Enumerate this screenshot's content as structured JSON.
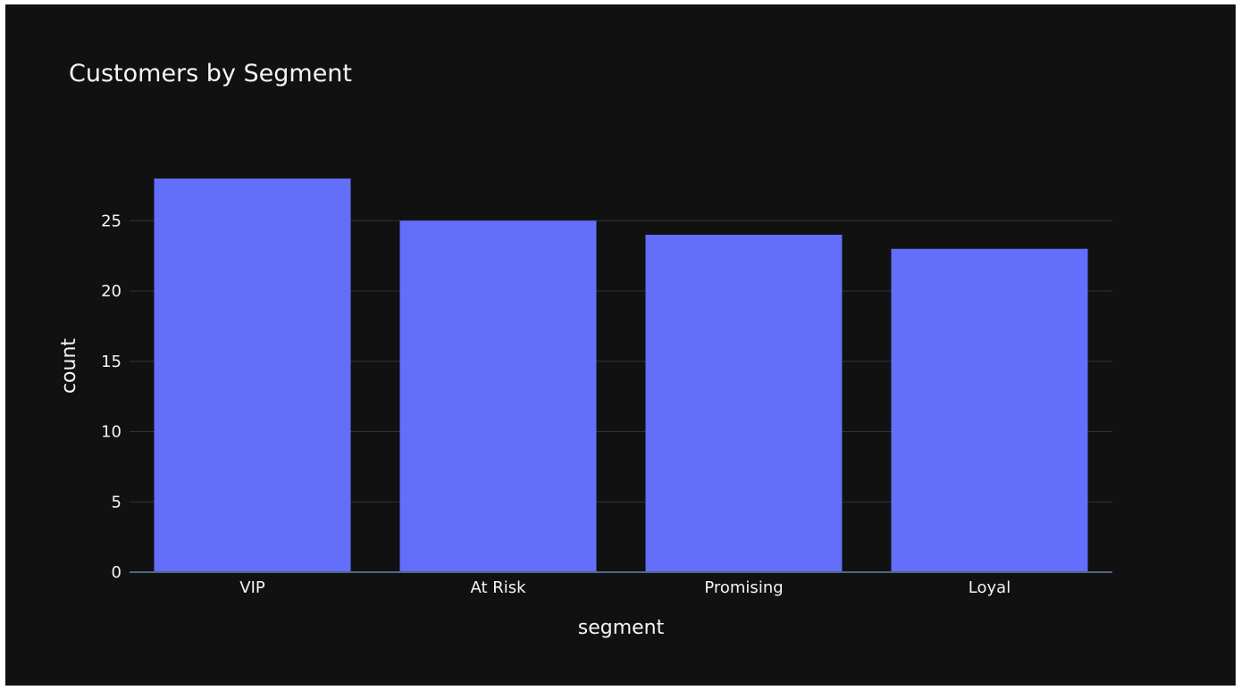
{
  "chart_data": {
    "type": "bar",
    "title": "Customers by Segment",
    "xlabel": "segment",
    "ylabel": "count",
    "categories": [
      "VIP",
      "At Risk",
      "Promising",
      "Loyal"
    ],
    "values": [
      28,
      25,
      24,
      23
    ],
    "ylim": [
      0,
      29.5
    ],
    "yticks": [
      0,
      5,
      10,
      15,
      20,
      25
    ],
    "grid": true,
    "legend": "none",
    "colors": {
      "bar": "#636efa",
      "background": "#111111",
      "grid": "#283442",
      "text": "#f2f5fa"
    }
  }
}
